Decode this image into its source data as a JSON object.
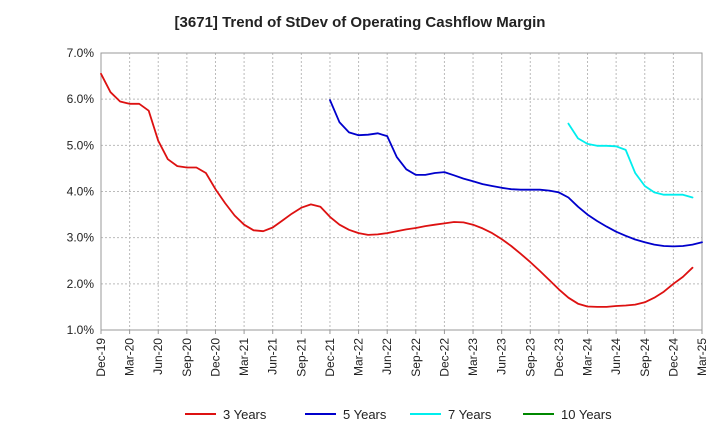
{
  "chart_data": {
    "type": "line",
    "title": "[3671]  Trend of StDev of Operating Cashflow Margin",
    "xlabel": "",
    "ylabel": "",
    "y_tick_labels": [
      "7.0%",
      "6.0%",
      "5.0%",
      "4.0%",
      "3.0%",
      "2.0%",
      "1.0%"
    ],
    "y_ticks": [
      7,
      6,
      5,
      4,
      3,
      2,
      1
    ],
    "ylim": [
      1.0,
      7.0
    ],
    "x_tick_labels": [
      "Dec-19",
      "Mar-20",
      "Jun-20",
      "Sep-20",
      "Dec-20",
      "Mar-21",
      "Jun-21",
      "Sep-21",
      "Dec-21",
      "Mar-22",
      "Jun-22",
      "Sep-22",
      "Dec-22",
      "Mar-23",
      "Jun-23",
      "Sep-23",
      "Dec-23",
      "Mar-24",
      "Jun-24",
      "Sep-24",
      "Dec-24",
      "Mar-25"
    ],
    "xlim_months": [
      0,
      63
    ],
    "grid": true,
    "legend_position": "bottom",
    "series": [
      {
        "name": "3 Years",
        "color": "#dd1111",
        "start_month": 0,
        "values": [
          6.55,
          6.15,
          5.95,
          5.9,
          5.9,
          5.75,
          5.1,
          4.7,
          4.55,
          4.52,
          4.52,
          4.4,
          4.05,
          3.75,
          3.48,
          3.28,
          3.16,
          3.14,
          3.22,
          3.37,
          3.52,
          3.65,
          3.72,
          3.67,
          3.45,
          3.28,
          3.17,
          3.1,
          3.06,
          3.07,
          3.1,
          3.14,
          3.18,
          3.21,
          3.25,
          3.28,
          3.31,
          3.34,
          3.33,
          3.28,
          3.2,
          3.1,
          2.97,
          2.82,
          2.65,
          2.47,
          2.28,
          2.08,
          1.88,
          1.7,
          1.57,
          1.51,
          1.5,
          1.5,
          1.52,
          1.53,
          1.55,
          1.6,
          1.7,
          1.83,
          2.0,
          2.15,
          2.35
        ]
      },
      {
        "name": "5 Years",
        "color": "#0000cc",
        "start_month": 24,
        "values": [
          5.98,
          5.5,
          5.28,
          5.22,
          5.23,
          5.26,
          5.2,
          4.75,
          4.48,
          4.36,
          4.36,
          4.4,
          4.42,
          4.35,
          4.28,
          4.22,
          4.16,
          4.12,
          4.08,
          4.05,
          4.04,
          4.04,
          4.04,
          4.02,
          3.98,
          3.87,
          3.67,
          3.5,
          3.36,
          3.24,
          3.13,
          3.04,
          2.96,
          2.9,
          2.85,
          2.82,
          2.81,
          2.82,
          2.85,
          2.9
        ]
      },
      {
        "name": "7 Years",
        "color": "#00eeee",
        "start_month": 49,
        "values": [
          5.47,
          5.15,
          5.03,
          4.99,
          4.99,
          4.98,
          4.9,
          4.4,
          4.12,
          3.98,
          3.93,
          3.93,
          3.93,
          3.87
        ]
      },
      {
        "name": "10 Years",
        "color": "#008800",
        "start_month": 0,
        "values": []
      }
    ]
  }
}
